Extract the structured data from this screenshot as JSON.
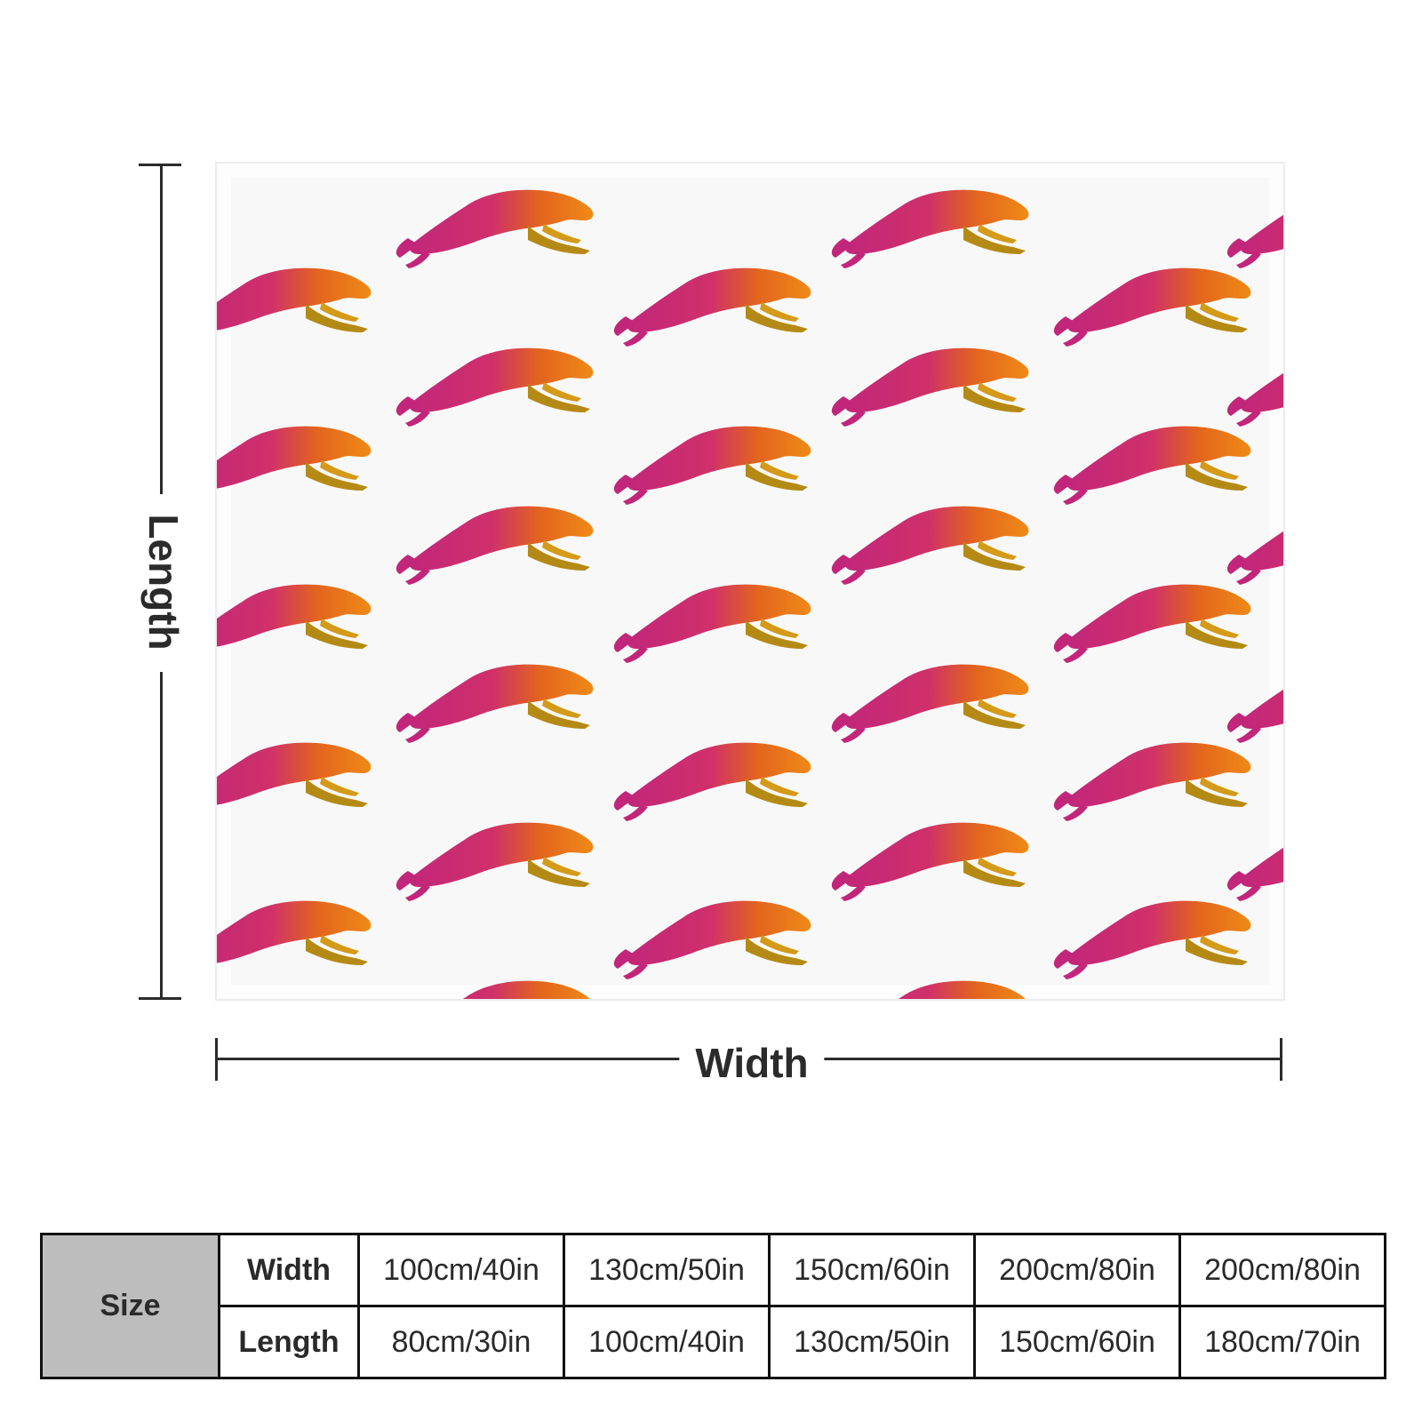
{
  "dimensions": {
    "length_label": "Length",
    "width_label": "Width"
  },
  "pattern": {
    "motif": "leaping-leopard",
    "colors": [
      "#c2267a",
      "#e2631f",
      "#f08a16",
      "#b58a14"
    ]
  },
  "size_table": {
    "header": "Size",
    "width_label": "Width",
    "length_label": "Length",
    "widths": [
      "100cm/40in",
      "130cm/50in",
      "150cm/60in",
      "200cm/80in",
      "200cm/80in"
    ],
    "lengths": [
      "80cm/30in",
      "100cm/40in",
      "130cm/50in",
      "150cm/60in",
      "180cm/70in"
    ],
    "header_bg": "#bdbdbd"
  }
}
